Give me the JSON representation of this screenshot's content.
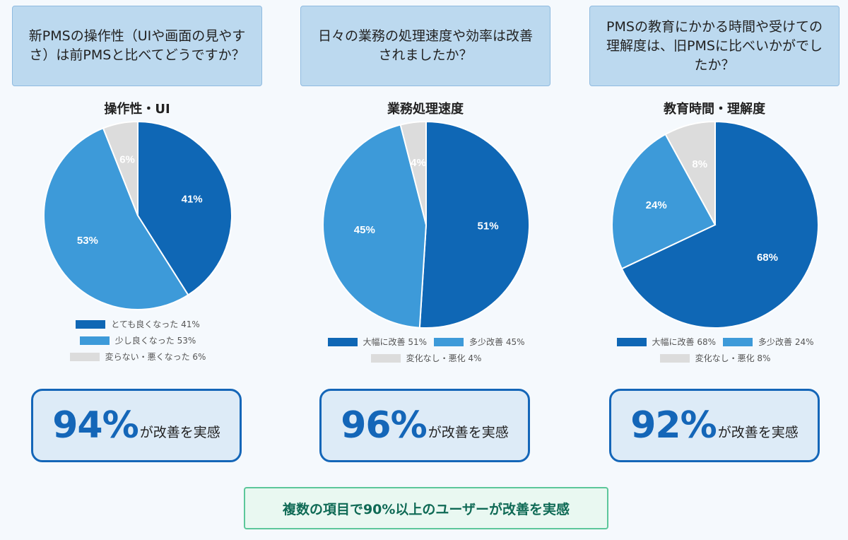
{
  "charts": [
    {
      "question": "新PMSの操作性（UIや画面の見やすさ）は前PMSと比べてどうですか？",
      "summary_value": "94%",
      "summary_text": "が改善を実感",
      "legend": [
        {
          "label": "とても良くなった 41%",
          "color": "#0f67b5"
        },
        {
          "label": "少し良くなった 53%",
          "color": "#3d9ad9"
        },
        {
          "label": "変らない・悪くなった 6%",
          "color": "#dcdcdc"
        }
      ],
      "chart_data": {
        "type": "pie",
        "title": "操作性・UI",
        "categories": [
          "とても良くなった",
          "少し良くなった",
          "変らない・悪くなった"
        ],
        "values": [
          41,
          53,
          6
        ],
        "value_labels": [
          "41%",
          "53%",
          "6%"
        ],
        "colors": [
          "#0f67b5",
          "#3d9ad9",
          "#dcdcdc"
        ]
      }
    },
    {
      "question": "日々の業務の処理速度や効率は改善されましたか？",
      "summary_value": "96%",
      "summary_text": "が改善を実感",
      "legend": [
        {
          "label": "大幅に改善 51%",
          "color": "#0f67b5"
        },
        {
          "label": "多少改善 45%",
          "color": "#3d9ad9"
        },
        {
          "label": "変化なし・悪化 4%",
          "color": "#dcdcdc"
        }
      ],
      "chart_data": {
        "type": "pie",
        "title": "業務処理速度",
        "categories": [
          "大幅に改善",
          "多少改善",
          "変化なし・悪化"
        ],
        "values": [
          51,
          45,
          4
        ],
        "value_labels": [
          "51%",
          "45%",
          "4%"
        ],
        "colors": [
          "#0f67b5",
          "#3d9ad9",
          "#dcdcdc"
        ]
      }
    },
    {
      "question": "PMSの教育にかかる時間や受けての理解度は、旧PMSに比べいかがでしたか？",
      "summary_value": "92%",
      "summary_text": "が改善を実感",
      "legend": [
        {
          "label": "大幅に改善 68%",
          "color": "#0f67b5"
        },
        {
          "label": "多少改善 24%",
          "color": "#3d9ad9"
        },
        {
          "label": "変化なし・悪化 8%",
          "color": "#dcdcdc"
        }
      ],
      "chart_data": {
        "type": "pie",
        "title": "教育時間・理解度",
        "categories": [
          "大幅に改善",
          "多少改善",
          "変化なし・悪化"
        ],
        "values": [
          68,
          24,
          8
        ],
        "value_labels": [
          "68%",
          "24%",
          "8%"
        ],
        "colors": [
          "#0f67b5",
          "#3d9ad9",
          "#dcdcdc"
        ]
      }
    }
  ],
  "banner": "複数の項目で90%以上のユーザーが改善を実感"
}
